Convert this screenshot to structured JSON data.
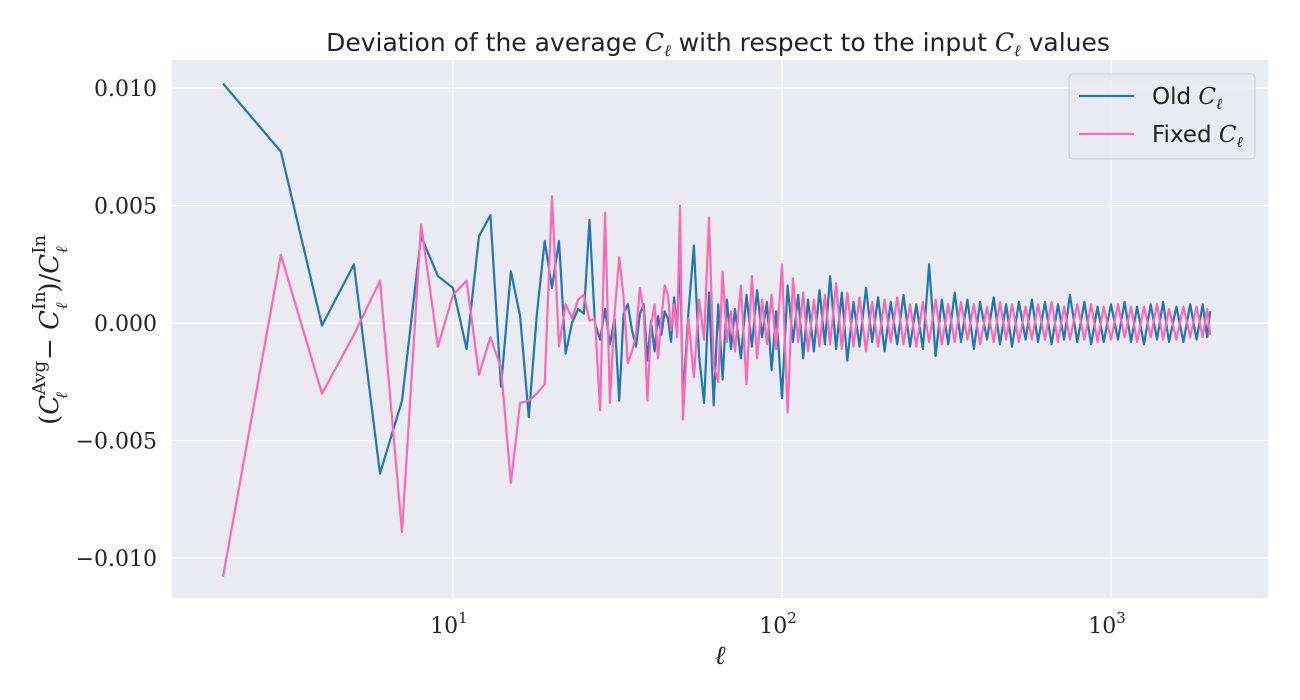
{
  "chart_data": {
    "type": "line",
    "title": "Deviation of the average Cℓ with respect to the input Cℓ values",
    "title_parts": [
      "Deviation of the average ",
      "C",
      "ℓ",
      " with respect to the input ",
      "C",
      "ℓ",
      " values"
    ],
    "xlabel": "ℓ",
    "ylabel": "(Cℓ^Avg − Cℓ^In) / Cℓ^In",
    "ylabel_parts": {
      "open": "(",
      "C": "C",
      "l": "ℓ",
      "avg": "Avg",
      "minus": " − ",
      "in": "In",
      "div": ")/"
    },
    "x_scale": "log",
    "xlim": [
      1.4,
      3000
    ],
    "ylim": [
      -0.0117,
      0.0112
    ],
    "x_ticks": [
      {
        "value": 10,
        "base": "10",
        "exp": "1"
      },
      {
        "value": 100,
        "base": "10",
        "exp": "2"
      },
      {
        "value": 1000,
        "base": "10",
        "exp": "3"
      }
    ],
    "y_ticks": [
      {
        "value": 0.01,
        "label": "0.010"
      },
      {
        "value": 0.005,
        "label": "0.005"
      },
      {
        "value": 0.0,
        "label": "0.000"
      },
      {
        "value": -0.005,
        "label": "−0.005"
      },
      {
        "value": -0.01,
        "label": "−0.010"
      }
    ],
    "grid": true,
    "background": "#eaeaf2",
    "legend_position": "top-right",
    "series": [
      {
        "name": "Old Cℓ",
        "legend_text": "Old ",
        "color": "#1f77b4",
        "x": [
          2,
          3,
          4,
          5,
          6,
          7,
          8,
          9,
          10,
          11,
          12,
          13,
          14,
          15,
          16,
          17,
          18,
          19,
          20,
          21,
          22,
          23,
          24,
          25,
          26,
          27,
          28,
          29,
          30,
          31,
          32,
          33,
          34,
          35,
          36,
          37,
          38,
          39,
          40,
          41,
          42,
          43,
          44,
          45,
          46,
          47,
          48,
          49,
          50,
          52,
          54,
          56,
          58,
          60,
          62,
          64,
          66,
          68,
          70,
          72,
          75,
          78,
          81,
          84,
          87,
          90,
          93,
          96,
          100,
          104,
          108,
          112,
          116,
          120,
          125,
          130,
          135,
          140,
          146,
          152,
          158,
          165,
          172,
          180,
          188,
          196,
          205,
          214,
          224,
          234,
          245,
          256,
          268,
          280,
          293,
          306,
          320,
          335,
          350,
          366,
          383,
          400,
          420,
          440,
          460,
          480,
          500,
          525,
          550,
          575,
          600,
          630,
          660,
          690,
          720,
          750,
          790,
          830,
          870,
          910,
          950,
          1000,
          1050,
          1100,
          1150,
          1200,
          1260,
          1320,
          1380,
          1440,
          1500,
          1580,
          1660,
          1740,
          1820,
          1900,
          1960,
          2000
        ],
        "y": [
          0.0102,
          0.0073,
          -0.0001,
          0.0025,
          -0.0064,
          -0.0033,
          0.0037,
          0.002,
          0.0015,
          -0.0011,
          0.0037,
          0.0046,
          -0.0027,
          0.0022,
          0.0003,
          -0.004,
          0.0004,
          0.0035,
          0.0015,
          0.0035,
          -0.0013,
          0.0,
          0.0006,
          0.0004,
          0.0044,
          0.0,
          -0.0007,
          0.0006,
          -0.0009,
          0.0002,
          -0.0033,
          0.0004,
          0.0008,
          -0.0003,
          -0.001,
          0.0004,
          0.0008,
          -0.0016,
          0.0001,
          -0.0012,
          0.0003,
          -0.0005,
          0.0005,
          0.0002,
          -0.0008,
          0.0011,
          -0.0004,
          0.003,
          -0.0033,
          0.0005,
          0.0033,
          -0.0014,
          -0.0034,
          0.0013,
          -0.0035,
          0.0008,
          -0.0024,
          0.001,
          -0.0011,
          0.0006,
          -0.0015,
          0.0012,
          -0.001,
          0.0014,
          -0.0006,
          0.0009,
          -0.002,
          0.0005,
          -0.0032,
          0.0016,
          -0.0008,
          0.0012,
          -0.0015,
          0.001,
          -0.0012,
          0.0014,
          -0.0009,
          0.002,
          -0.0011,
          0.0013,
          -0.0016,
          0.0009,
          -0.001,
          0.0015,
          -0.0008,
          0.0011,
          -0.0012,
          0.0009,
          -0.0009,
          0.0012,
          -0.001,
          0.0008,
          -0.0011,
          0.0025,
          -0.0014,
          0.001,
          -0.0009,
          0.0013,
          -0.0008,
          0.001,
          -0.0011,
          0.0009,
          -0.0007,
          0.0011,
          -0.0009,
          0.0008,
          -0.001,
          0.0009,
          -0.0007,
          0.001,
          -0.0008,
          0.0009,
          -0.0009,
          0.0008,
          -0.0007,
          0.0012,
          -0.0008,
          0.0009,
          -0.0009,
          0.0007,
          -0.0008,
          0.0008,
          -0.0007,
          0.0009,
          -0.0008,
          0.0007,
          -0.0009,
          0.0008,
          -0.0007,
          0.0009,
          -0.0008,
          0.0007,
          -0.0008,
          0.0008,
          -0.0007,
          0.0008,
          -0.0006,
          0.0005
        ]
      },
      {
        "name": "Fixed Cℓ",
        "legend_text": "Fixed ",
        "color": "#ff69b4",
        "x": [
          2,
          3,
          4,
          5,
          6,
          7,
          8,
          9,
          10,
          11,
          12,
          13,
          14,
          15,
          16,
          17,
          18,
          19,
          20,
          21,
          22,
          23,
          24,
          25,
          26,
          27,
          28,
          29,
          30,
          31,
          32,
          33,
          34,
          35,
          36,
          37,
          38,
          39,
          40,
          41,
          42,
          43,
          44,
          45,
          46,
          47,
          48,
          49,
          50,
          52,
          54,
          56,
          58,
          60,
          62,
          64,
          66,
          68,
          70,
          72,
          75,
          78,
          81,
          84,
          87,
          90,
          93,
          96,
          100,
          104,
          108,
          112,
          116,
          120,
          125,
          130,
          135,
          140,
          146,
          152,
          158,
          165,
          172,
          180,
          188,
          196,
          205,
          214,
          224,
          234,
          245,
          256,
          268,
          280,
          293,
          306,
          320,
          335,
          350,
          366,
          383,
          400,
          420,
          440,
          460,
          480,
          500,
          525,
          550,
          575,
          600,
          630,
          660,
          690,
          720,
          750,
          790,
          830,
          870,
          910,
          950,
          1000,
          1050,
          1100,
          1150,
          1200,
          1260,
          1320,
          1380,
          1440,
          1500,
          1580,
          1660,
          1740,
          1820,
          1900,
          1960,
          2000
        ],
        "y": [
          -0.0108,
          0.0029,
          -0.003,
          -0.0005,
          0.0018,
          -0.0089,
          0.0042,
          -0.001,
          0.0012,
          0.0018,
          -0.0022,
          -0.0006,
          -0.0019,
          -0.0068,
          -0.0034,
          -0.0033,
          -0.003,
          -0.0026,
          0.0054,
          -0.001,
          0.0008,
          0.0002,
          0.001,
          0.0012,
          0.0001,
          0.0002,
          -0.0037,
          0.0047,
          -0.0034,
          0.0004,
          0.0028,
          0.0011,
          -0.0017,
          -0.0012,
          -0.0005,
          0.0015,
          0.0005,
          -0.0033,
          -0.0001,
          0.0008,
          -0.0015,
          0.0002,
          0.0016,
          0.0012,
          -0.0003,
          0.0008,
          -0.0006,
          0.005,
          -0.0041,
          0.0002,
          -0.0023,
          0.001,
          -0.0007,
          0.0045,
          -0.0018,
          -0.0025,
          0.0022,
          -0.0008,
          0.0005,
          -0.0012,
          0.0016,
          -0.0026,
          0.002,
          -0.0015,
          0.001,
          -0.0009,
          0.0012,
          -0.0011,
          0.0025,
          -0.0038,
          0.0019,
          -0.0008,
          0.0013,
          -0.0012,
          0.001,
          -0.001,
          0.0012,
          -0.0009,
          0.0017,
          -0.0011,
          0.0013,
          -0.001,
          0.0011,
          -0.0012,
          0.0009,
          -0.001,
          0.001,
          -0.0008,
          0.0011,
          -0.0009,
          0.0008,
          -0.001,
          0.0009,
          -0.0008,
          0.001,
          -0.0009,
          0.0008,
          -0.0008,
          0.0009,
          -0.0007,
          0.0008,
          -0.0009,
          0.0007,
          -0.0008,
          0.0009,
          -0.0007,
          0.0008,
          -0.0008,
          0.0007,
          -0.0007,
          0.0008,
          -0.0007,
          0.0009,
          -0.0008,
          0.0007,
          -0.0007,
          0.0008,
          -0.0007,
          0.0008,
          -0.0008,
          0.0007,
          -0.0007,
          0.0008,
          -0.0006,
          0.0007,
          -0.0008,
          0.0007,
          -0.0006,
          0.0008,
          -0.0007,
          0.0006,
          -0.0007,
          0.0007,
          -0.0006,
          0.0007,
          -0.0006,
          0.0006,
          -0.0005
        ]
      }
    ]
  }
}
